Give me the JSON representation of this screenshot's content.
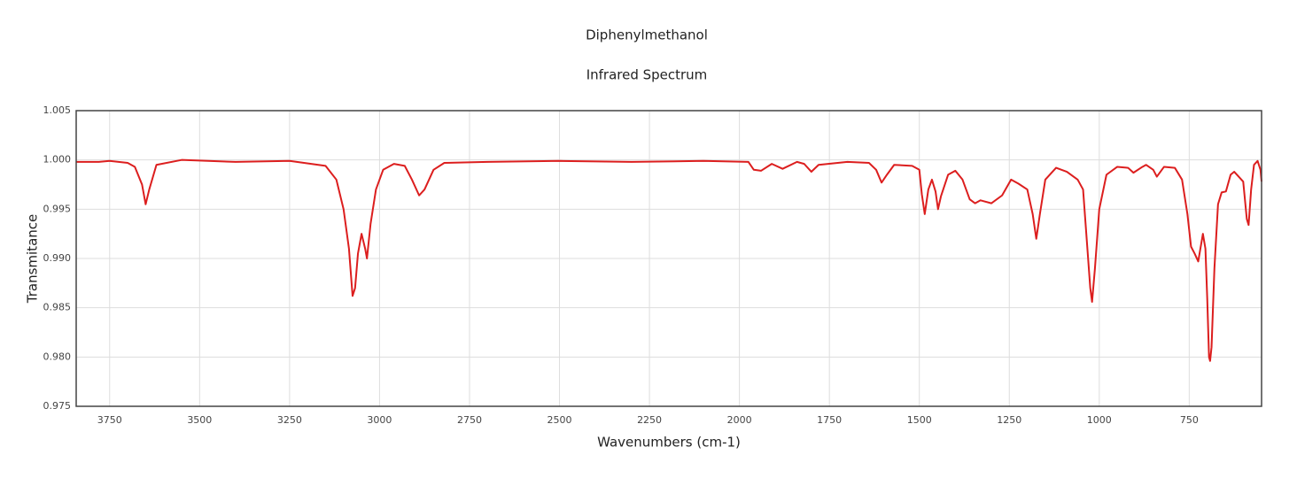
{
  "chart_data": {
    "type": "line",
    "title": "Diphenylmethanol",
    "subtitle": "Infrared Spectrum",
    "x_label": "Wavenumbers (cm-1)",
    "y_label": "Transmitance",
    "color": "#dc1e1e",
    "grid": true,
    "xlim": [
      3843,
      549
    ],
    "ylim": [
      0.975,
      1.005
    ],
    "xticks": [
      3750,
      3500,
      3250,
      3000,
      2750,
      2500,
      2250,
      2000,
      1750,
      1500,
      1250,
      1000,
      750
    ],
    "yticks": [
      0.975,
      {
        "value": 0.98,
        "label": "0.980"
      },
      0.985,
      {
        "value": 0.99,
        "label": "0.990"
      },
      0.995,
      {
        "value": 1.0,
        "label": "1.000"
      },
      1.005
    ],
    "x": [
      3843,
      3780,
      3750,
      3700,
      3680,
      3660,
      3650,
      3640,
      3620,
      3550,
      3400,
      3250,
      3150,
      3120,
      3100,
      3085,
      3075,
      3068,
      3060,
      3050,
      3040,
      3035,
      3025,
      3010,
      2990,
      2960,
      2930,
      2910,
      2890,
      2875,
      2850,
      2820,
      2700,
      2500,
      2300,
      2100,
      1975,
      1960,
      1940,
      1910,
      1880,
      1840,
      1820,
      1800,
      1780,
      1700,
      1640,
      1620,
      1605,
      1590,
      1570,
      1520,
      1500,
      1493,
      1485,
      1475,
      1465,
      1455,
      1448,
      1440,
      1420,
      1400,
      1380,
      1360,
      1345,
      1330,
      1300,
      1270,
      1245,
      1225,
      1200,
      1185,
      1175,
      1165,
      1150,
      1120,
      1090,
      1060,
      1045,
      1035,
      1025,
      1020,
      1012,
      1000,
      980,
      950,
      920,
      905,
      880,
      870,
      850,
      840,
      820,
      790,
      770,
      755,
      745,
      735,
      725,
      712,
      705,
      700,
      695,
      692,
      688,
      680,
      670,
      660,
      648,
      635,
      625,
      600,
      590,
      585,
      578,
      570,
      560,
      552,
      549
    ],
    "values": [
      0.9998,
      0.9998,
      0.9999,
      0.9997,
      0.9993,
      0.9975,
      0.9955,
      0.997,
      0.9995,
      1.0,
      0.9998,
      0.9999,
      0.9994,
      0.998,
      0.995,
      0.991,
      0.9862,
      0.987,
      0.9905,
      0.9925,
      0.991,
      0.99,
      0.9935,
      0.997,
      0.999,
      0.9996,
      0.9994,
      0.998,
      0.9964,
      0.997,
      0.999,
      0.9997,
      0.9998,
      0.9999,
      0.9998,
      0.9999,
      0.9998,
      0.999,
      0.9989,
      0.9996,
      0.9991,
      0.9998,
      0.9996,
      0.9988,
      0.9995,
      0.9998,
      0.9997,
      0.999,
      0.9977,
      0.9985,
      0.9995,
      0.9994,
      0.999,
      0.9965,
      0.9945,
      0.997,
      0.998,
      0.9968,
      0.995,
      0.9963,
      0.9985,
      0.9989,
      0.998,
      0.996,
      0.9956,
      0.9959,
      0.9956,
      0.9964,
      0.998,
      0.9976,
      0.997,
      0.9945,
      0.992,
      0.9945,
      0.998,
      0.9992,
      0.9988,
      0.998,
      0.997,
      0.992,
      0.987,
      0.9856,
      0.989,
      0.995,
      0.9985,
      0.9993,
      0.9992,
      0.9987,
      0.9993,
      0.9995,
      0.999,
      0.9983,
      0.9993,
      0.9992,
      0.998,
      0.9945,
      0.9912,
      0.9905,
      0.9897,
      0.9925,
      0.991,
      0.986,
      0.98,
      0.9796,
      0.981,
      0.989,
      0.9955,
      0.9967,
      0.9968,
      0.9985,
      0.9988,
      0.9978,
      0.994,
      0.9934,
      0.997,
      0.9995,
      0.9999,
      0.999,
      0.9978
    ]
  }
}
